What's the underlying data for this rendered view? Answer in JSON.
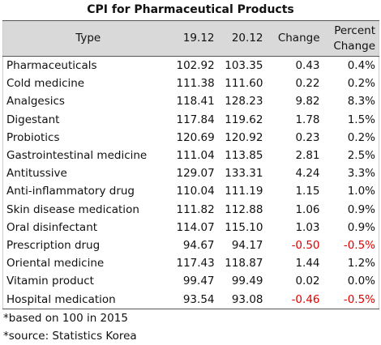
{
  "title": "CPI for Pharmaceutical Products",
  "table": {
    "header": [
      "Type",
      "19.12",
      "20.12",
      "Change",
      "Percent Change"
    ],
    "rows": [
      [
        "Pharmaceuticals",
        "102.92",
        "103.35",
        "0.43",
        "0.4%"
      ],
      [
        "Cold medicine",
        "111.38",
        "111.60",
        "0.22",
        "0.2%"
      ],
      [
        "Analgesics",
        "118.41",
        "128.23",
        "9.82",
        "8.3%"
      ],
      [
        "Digestant",
        "117.84",
        "119.62",
        "1.78",
        "1.5%"
      ],
      [
        "Probiotics",
        "120.69",
        "120.92",
        "0.23",
        "0.2%"
      ],
      [
        "Gastrointestinal medicine",
        "111.04",
        "113.85",
        "2.81",
        "2.5%"
      ],
      [
        "Antitussive",
        "129.07",
        "133.31",
        "4.24",
        "3.3%"
      ],
      [
        "Anti-inflammatory drug",
        "110.04",
        "111.19",
        "1.15",
        "1.0%"
      ],
      [
        "Skin disease medication",
        "111.82",
        "112.88",
        "1.06",
        "0.9%"
      ],
      [
        "Oral disinfectant",
        "114.07",
        "115.10",
        "1.03",
        "0.9%"
      ],
      [
        "Prescription drug",
        "94.67",
        "94.17",
        "-0.50",
        "-0.5%"
      ],
      [
        "Oriental medicine",
        "117.43",
        "118.87",
        "1.44",
        "1.2%"
      ],
      [
        "Vitamin product",
        "99.47",
        "99.49",
        "0.02",
        "0.0%"
      ],
      [
        "Hospital medication",
        "93.54",
        "93.08",
        "-0.46",
        "-0.5%"
      ]
    ],
    "negative_color": "#e00000"
  },
  "notes": [
    "*based on 100 in 2015",
    "*source: Statistics Korea"
  ]
}
